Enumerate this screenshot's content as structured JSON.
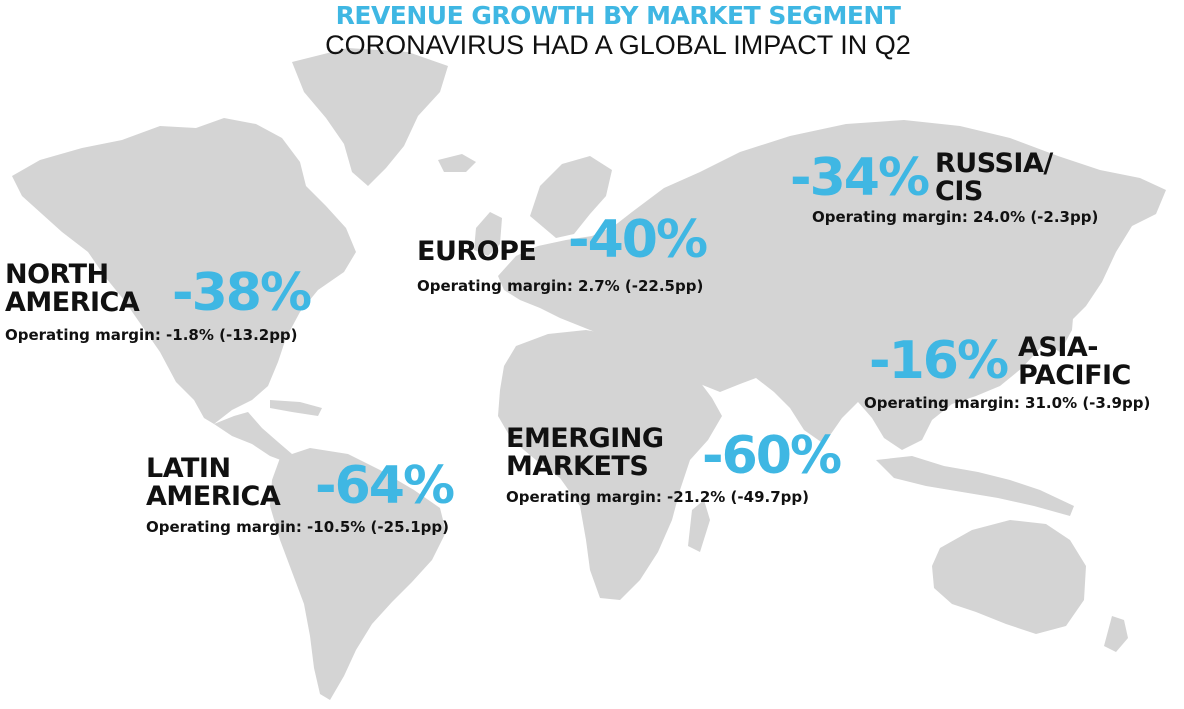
{
  "colors": {
    "accent": "#3fb7e3",
    "text": "#111111",
    "land": "#d4d4d4",
    "background": "#ffffff"
  },
  "title": "REVENUE GROWTH BY MARKET SEGMENT",
  "subtitle": "CORONAVIRUS HAD A GLOBAL IMPACT IN Q2",
  "regions": {
    "north_america": {
      "name_lines": [
        "NORTH",
        "AMERICA"
      ],
      "growth": "-38%",
      "margin": "Operating margin: -1.8% (-13.2pp)"
    },
    "europe": {
      "name_lines": [
        "EUROPE"
      ],
      "growth": "-40%",
      "margin": "Operating margin: 2.7% (-22.5pp)"
    },
    "russia_cis": {
      "name_lines": [
        "RUSSIA/",
        "CIS"
      ],
      "growth": "-34%",
      "margin": "Operating margin: 24.0% (-2.3pp)"
    },
    "asia_pacific": {
      "name_lines": [
        "ASIA-",
        "PACIFIC"
      ],
      "growth": "-16%",
      "margin": "Operating margin: 31.0% (-3.9pp)"
    },
    "latin_america": {
      "name_lines": [
        "LATIN",
        "AMERICA"
      ],
      "growth": "-64%",
      "margin": "Operating margin: -10.5% (-25.1pp)"
    },
    "emerging_markets": {
      "name_lines": [
        "EMERGING",
        "MARKETS"
      ],
      "growth": "-60%",
      "margin": "Operating margin: -21.2% (-49.7pp)"
    }
  }
}
